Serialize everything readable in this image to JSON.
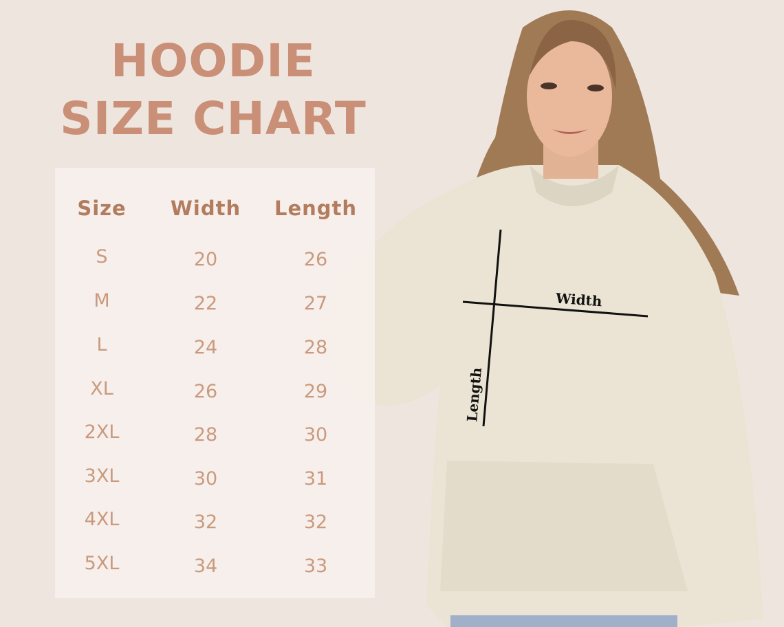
{
  "title_line1": "HOODIE",
  "title_line2": "SIZE CHART",
  "table": {
    "headers": [
      "Size",
      "Width",
      "Length"
    ],
    "rows": [
      [
        "S",
        "20",
        "26"
      ],
      [
        "M",
        "22",
        "27"
      ],
      [
        "L",
        "24",
        "28"
      ],
      [
        "XL",
        "26",
        "29"
      ],
      [
        "2XL",
        "28",
        "30"
      ],
      [
        "3XL",
        "30",
        "31"
      ],
      [
        "4XL",
        "32",
        "32"
      ],
      [
        "5XL",
        "34",
        "33"
      ]
    ]
  },
  "measure_labels": {
    "width": "Width",
    "length": "Length"
  },
  "colors": {
    "background": "#efe5df",
    "title": "#c98f77",
    "header": "#b27c5e",
    "values": "#c99a7e",
    "hoodie": "#ebe4d4"
  }
}
